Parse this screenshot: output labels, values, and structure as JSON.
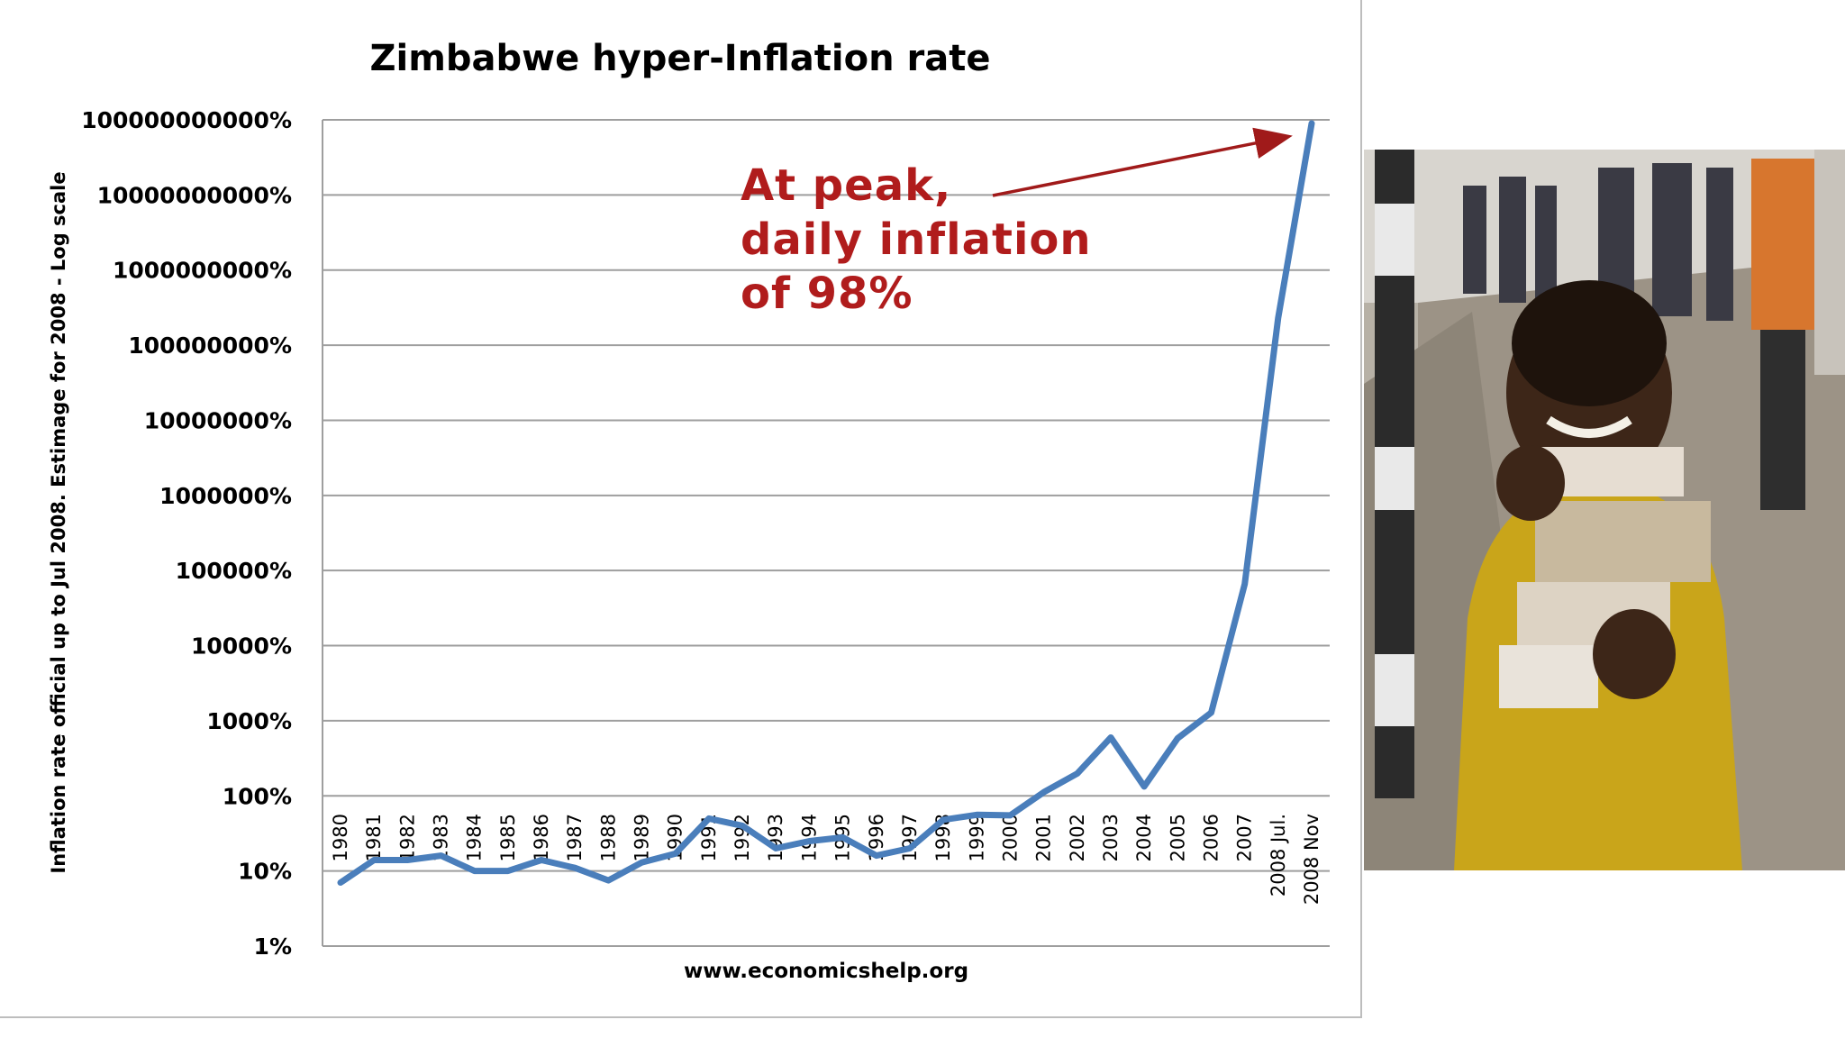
{
  "chart_data": {
    "type": "line",
    "title": "Zimbabwe hyper-Inflation rate",
    "ylabel": "Inflation rate official up to Jul 2008. Estimage for 2008 - Log scale",
    "xlabel": "",
    "source": "www.economicshelp.org",
    "y_scale": "log",
    "ylim": [
      1,
      100000000000
    ],
    "y_ticks": [
      "100000000000%",
      "10000000000%",
      "1000000000%",
      "100000000%",
      "10000000%",
      "1000000%",
      "100000%",
      "10000%",
      "1000%",
      "100%",
      "10%",
      "1%"
    ],
    "y_tick_values": [
      100000000000,
      10000000000,
      1000000000,
      100000000,
      10000000,
      1000000,
      100000,
      10000,
      1000,
      100,
      10,
      1
    ],
    "grid": true,
    "categories": [
      "1980",
      "1981",
      "1982",
      "1983",
      "1984",
      "1985",
      "1986",
      "1987",
      "1988",
      "1989",
      "1990",
      "1991",
      "1992",
      "1993",
      "1994",
      "1995",
      "1996",
      "1997",
      "1998",
      "1999",
      "2000",
      "2001",
      "2002",
      "2003",
      "2004",
      "2005",
      "2006",
      "2007",
      "2008 Jul.",
      "2008 Nov"
    ],
    "values": [
      7,
      14,
      14,
      16,
      10,
      10,
      14,
      11,
      7.5,
      13,
      17,
      50,
      40,
      20,
      25,
      28,
      16,
      20,
      48,
      56,
      55,
      112,
      198,
      599,
      133,
      585,
      1281,
      66212,
      231000000,
      89700000000
    ],
    "line_color": "#4a7ebb",
    "annotation": {
      "lines": [
        "At peak,",
        "daily inflation",
        "of 98%"
      ],
      "color": "#b01c1c"
    }
  },
  "photo": {
    "description_icon": "photo-boy-with-banknotes"
  }
}
